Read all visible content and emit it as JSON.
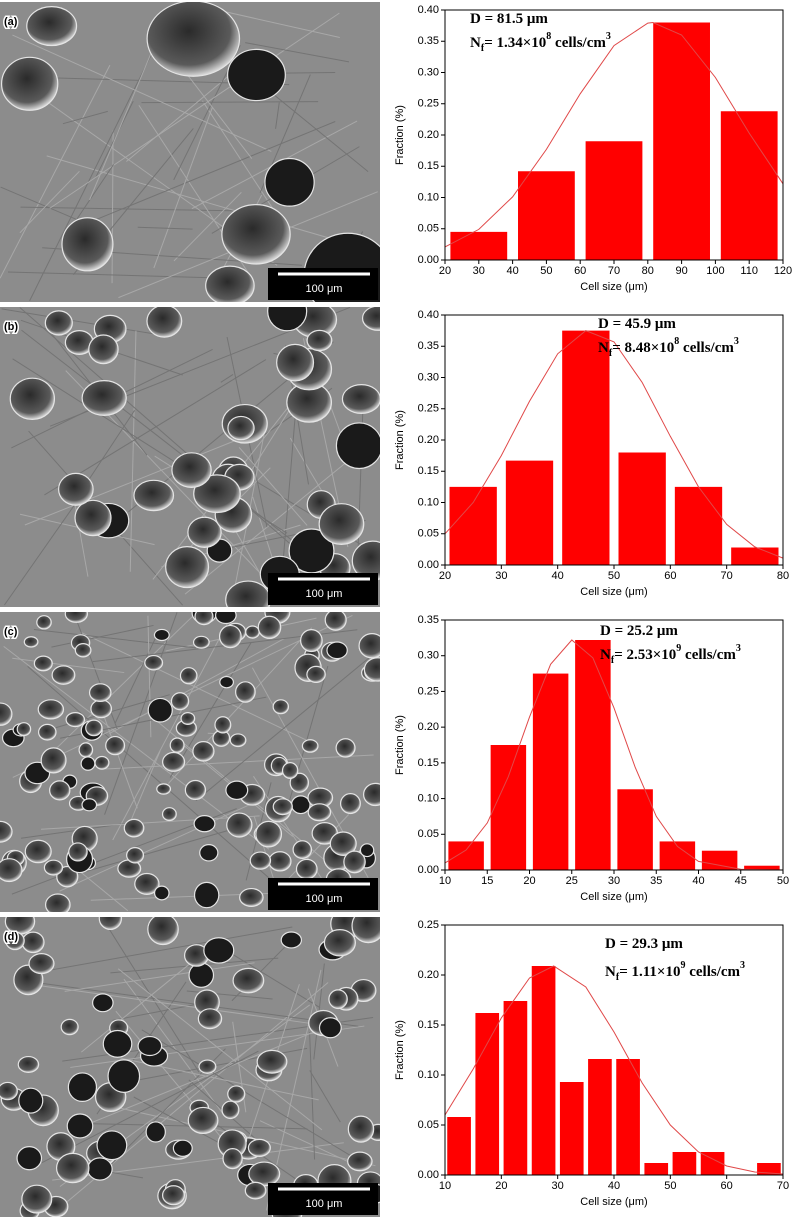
{
  "panels": [
    {
      "label": "(a)",
      "scale_bar": "100 μm"
    },
    {
      "label": "(b)",
      "scale_bar": "100 μm"
    },
    {
      "label": "(c)",
      "scale_bar": "100 μm"
    },
    {
      "label": "(d)",
      "scale_bar": "100 μm"
    }
  ],
  "chart_data": [
    {
      "type": "histogram",
      "xlabel": "Cell size (μm)",
      "ylabel": "Fraction (%)",
      "annotations": [
        [
          "D = 81.5 μm"
        ],
        [
          "N",
          "f",
          "= 1.34×10",
          "8",
          " cells/cm",
          "3"
        ]
      ],
      "bins": [
        20,
        40,
        60,
        80,
        100,
        120
      ],
      "values": [
        0.045,
        0.142,
        0.19,
        0.38,
        0.238
      ],
      "color": "#ff0000",
      "curve": {
        "x": [
          20,
          30,
          40,
          50,
          60,
          70,
          80,
          81.5,
          90,
          100,
          110,
          120
        ],
        "values": [
          0.021,
          0.049,
          0.101,
          0.177,
          0.266,
          0.343,
          0.379,
          0.38,
          0.36,
          0.292,
          0.203,
          0.122
        ],
        "color": "#e04848"
      },
      "xlim": [
        20,
        120
      ],
      "xticks": [
        20,
        30,
        40,
        50,
        60,
        70,
        80,
        90,
        100,
        110,
        120
      ],
      "ylim": [
        0,
        0.4
      ],
      "yticks": [
        {
          "value": 0,
          "label": "0.00"
        },
        {
          "value": 0.05,
          "label": "0.05"
        },
        {
          "value": 0.1,
          "label": "0.10"
        },
        {
          "value": 0.15,
          "label": "0.15"
        },
        {
          "value": 0.2,
          "label": "0.20"
        },
        {
          "value": 0.25,
          "label": "0.25"
        },
        {
          "value": 0.3,
          "label": "0.30"
        },
        {
          "value": 0.35,
          "label": "0.35"
        },
        {
          "value": 0.4,
          "label": "0.40"
        }
      ]
    },
    {
      "type": "histogram",
      "xlabel": "Cell size (μm)",
      "ylabel": "Fraction (%)",
      "annotations": [
        [
          "D = 45.9 μm"
        ],
        [
          "N",
          "f",
          "= 8.48×10",
          "8",
          " cells/cm",
          "3"
        ]
      ],
      "bins": [
        20,
        30,
        40,
        50,
        60,
        70,
        80
      ],
      "values": [
        0.125,
        0.167,
        0.375,
        0.18,
        0.125,
        0.028
      ],
      "color": "#ff0000",
      "curve": {
        "x": [
          20,
          25,
          30,
          35,
          40,
          45,
          50,
          55,
          60,
          65,
          70,
          75,
          80
        ],
        "values": [
          0.05,
          0.1,
          0.175,
          0.262,
          0.338,
          0.375,
          0.357,
          0.292,
          0.206,
          0.125,
          0.065,
          0.029,
          0.011
        ],
        "color": "#e04848"
      },
      "xlim": [
        20,
        80
      ],
      "xticks": [
        20,
        30,
        40,
        50,
        60,
        70,
        80
      ],
      "ylim": [
        0,
        0.4
      ],
      "yticks": [
        {
          "value": 0,
          "label": "0.00"
        },
        {
          "value": 0.05,
          "label": "0.05"
        },
        {
          "value": 0.1,
          "label": "0.10"
        },
        {
          "value": 0.15,
          "label": "0.15"
        },
        {
          "value": 0.2,
          "label": "0.20"
        },
        {
          "value": 0.25,
          "label": "0.25"
        },
        {
          "value": 0.3,
          "label": "0.30"
        },
        {
          "value": 0.35,
          "label": "0.35"
        },
        {
          "value": 0.4,
          "label": "0.40"
        }
      ]
    },
    {
      "type": "histogram",
      "xlabel": "Cell size (μm)",
      "ylabel": "Fraction (%)",
      "annotations": [
        [
          "D = 25.2 μm"
        ],
        [
          "N",
          "f",
          "= 2.53×10",
          "9",
          " cells/cm",
          "3"
        ]
      ],
      "bins": [
        10,
        15,
        20,
        25,
        30,
        35,
        40,
        45,
        50
      ],
      "values": [
        0.04,
        0.175,
        0.275,
        0.322,
        0.113,
        0.04,
        0.027,
        0.006
      ],
      "color": "#ff0000",
      "curve": {
        "x": [
          10,
          12.5,
          15,
          17.5,
          20,
          22.5,
          25,
          27.5,
          30,
          32.5,
          35,
          37.5,
          40,
          45,
          50
        ],
        "values": [
          0.01,
          0.028,
          0.066,
          0.131,
          0.214,
          0.288,
          0.322,
          0.297,
          0.227,
          0.144,
          0.075,
          0.033,
          0.012,
          0.001,
          0
        ],
        "color": "#e04848"
      },
      "xlim": [
        10,
        50
      ],
      "xticks": [
        10,
        15,
        20,
        25,
        30,
        35,
        40,
        45,
        50
      ],
      "ylim": [
        0,
        0.35
      ],
      "yticks": [
        {
          "value": 0,
          "label": "0.00"
        },
        {
          "value": 0.05,
          "label": "0.05"
        },
        {
          "value": 0.1,
          "label": "0.10"
        },
        {
          "value": 0.15,
          "label": "0.15"
        },
        {
          "value": 0.2,
          "label": "0.20"
        },
        {
          "value": 0.25,
          "label": "0.25"
        },
        {
          "value": 0.3,
          "label": "0.30"
        },
        {
          "value": 0.35,
          "label": "0.35"
        }
      ]
    },
    {
      "type": "histogram",
      "xlabel": "Cell size (μm)",
      "ylabel": "Fraction (%)",
      "annotations": [
        [
          "D = 29.3 μm"
        ],
        [
          "N",
          "f",
          "= 1.11×10",
          "9",
          " cells/cm",
          "3"
        ]
      ],
      "bins": [
        10,
        15,
        20,
        25,
        30,
        35,
        40,
        45,
        50,
        55,
        60,
        65,
        70
      ],
      "values": [
        0.058,
        0.162,
        0.174,
        0.209,
        0.093,
        0.116,
        0.116,
        0.012,
        0.023,
        0.023,
        0,
        0.012
      ],
      "color": "#ff0000",
      "curve": {
        "x": [
          10,
          15,
          20,
          25,
          29.3,
          35,
          40,
          45,
          50,
          55,
          60,
          65,
          70
        ],
        "values": [
          0.06,
          0.106,
          0.157,
          0.197,
          0.209,
          0.188,
          0.143,
          0.092,
          0.05,
          0.023,
          0.009,
          0.003,
          0.001
        ],
        "color": "#e04848"
      },
      "xlim": [
        10,
        70
      ],
      "xticks": [
        10,
        20,
        30,
        40,
        50,
        60,
        70
      ],
      "ylim": [
        0,
        0.25
      ],
      "yticks": [
        {
          "value": 0,
          "label": "0.00"
        },
        {
          "value": 0.05,
          "label": "0.05"
        },
        {
          "value": 0.1,
          "label": "0.10"
        },
        {
          "value": 0.15,
          "label": "0.15"
        },
        {
          "value": 0.2,
          "label": "0.20"
        },
        {
          "value": 0.25,
          "label": "0.25"
        }
      ]
    }
  ]
}
